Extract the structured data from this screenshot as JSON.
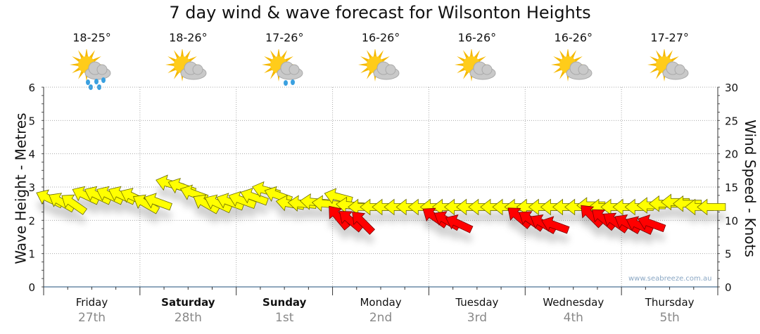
{
  "chart_data": {
    "type": "scatter",
    "title": "7 day wind & wave forecast for Wilsonton Heights",
    "ylabel": "Wave Height - Metres",
    "y2label": "Wind Speed - Knots",
    "ylim": [
      0,
      6
    ],
    "y2lim": [
      0,
      30
    ],
    "yticks": [
      "0",
      "1",
      "2",
      "3",
      "4",
      "5",
      "6"
    ],
    "y2ticks": [
      "0",
      "5",
      "10",
      "15",
      "20",
      "25",
      "30"
    ],
    "grid": true,
    "interval_hours": 3,
    "days": [
      {
        "name": "Friday",
        "date": "27th",
        "temp": "18-25°",
        "icon": "sun-cloud-rain",
        "bold": false
      },
      {
        "name": "Saturday",
        "date": "28th",
        "temp": "18-26°",
        "icon": "sun-cloud",
        "bold": true
      },
      {
        "name": "Sunday",
        "date": "1st",
        "temp": "17-26°",
        "icon": "sun-cloud-light-rain",
        "bold": true
      },
      {
        "name": "Monday",
        "date": "2nd",
        "temp": "16-26°",
        "icon": "sun-cloud",
        "bold": false
      },
      {
        "name": "Tuesday",
        "date": "3rd",
        "temp": "16-26°",
        "icon": "sun-cloud",
        "bold": false
      },
      {
        "name": "Wednesday",
        "date": "4th",
        "temp": "16-26°",
        "icon": "sun-cloud",
        "bold": false
      },
      {
        "name": "Thursday",
        "date": "5th",
        "temp": "17-27°",
        "icon": "sun-cloud",
        "bold": false
      }
    ],
    "series": [
      {
        "name": "yellow arrows",
        "color": "#ffff00",
        "values": [
          2.65,
          2.55,
          2.5,
          2.75,
          2.75,
          2.75,
          2.75,
          2.7,
          2.5,
          2.55,
          3.1,
          3.0,
          2.8,
          2.5,
          2.5,
          2.55,
          2.6,
          2.7,
          2.9,
          2.75,
          2.5,
          2.5,
          2.55,
          2.5,
          2.7,
          2.45,
          2.4,
          2.4,
          2.4,
          2.4,
          2.4,
          2.4,
          2.4,
          2.4,
          2.4,
          2.4,
          2.4,
          2.4,
          2.4,
          2.4,
          2.4,
          2.4,
          2.4,
          2.4,
          2.4,
          2.45,
          2.4,
          2.4,
          2.4,
          2.4,
          2.45,
          2.5,
          2.55,
          2.5,
          2.4,
          2.4
        ],
        "direction_deg": [
          115,
          120,
          125,
          115,
          115,
          115,
          115,
          115,
          120,
          110,
          105,
          110,
          110,
          120,
          115,
          110,
          110,
          110,
          105,
          110,
          100,
          95,
          95,
          95,
          105,
          95,
          90,
          90,
          90,
          90,
          90,
          90,
          90,
          90,
          90,
          90,
          90,
          90,
          90,
          90,
          90,
          90,
          90,
          90,
          90,
          90,
          90,
          90,
          90,
          90,
          90,
          90,
          90,
          90,
          90,
          90
        ]
      },
      {
        "name": "red arrows",
        "color": "#ff0000",
        "values": [
          null,
          null,
          null,
          null,
          null,
          null,
          null,
          null,
          null,
          null,
          null,
          null,
          null,
          null,
          null,
          null,
          null,
          null,
          null,
          null,
          null,
          null,
          null,
          null,
          2.1,
          2.0,
          1.95,
          null,
          null,
          null,
          null,
          null,
          2.1,
          2.0,
          1.9,
          null,
          null,
          null,
          null,
          2.1,
          2.0,
          1.9,
          1.85,
          null,
          null,
          2.15,
          2.05,
          1.95,
          1.9,
          1.85,
          1.9,
          null,
          null,
          null,
          null,
          null
        ],
        "direction_deg": [
          0,
          0,
          0,
          0,
          0,
          0,
          0,
          0,
          0,
          0,
          0,
          0,
          0,
          0,
          0,
          0,
          0,
          0,
          0,
          0,
          0,
          0,
          0,
          0,
          140,
          130,
          135,
          0,
          0,
          0,
          0,
          0,
          125,
          120,
          115,
          0,
          0,
          0,
          0,
          130,
          125,
          120,
          110,
          0,
          0,
          135,
          130,
          125,
          120,
          115,
          110,
          0,
          0,
          0,
          0,
          0
        ]
      }
    ]
  },
  "watermark": "www.seabreeze.com.au"
}
